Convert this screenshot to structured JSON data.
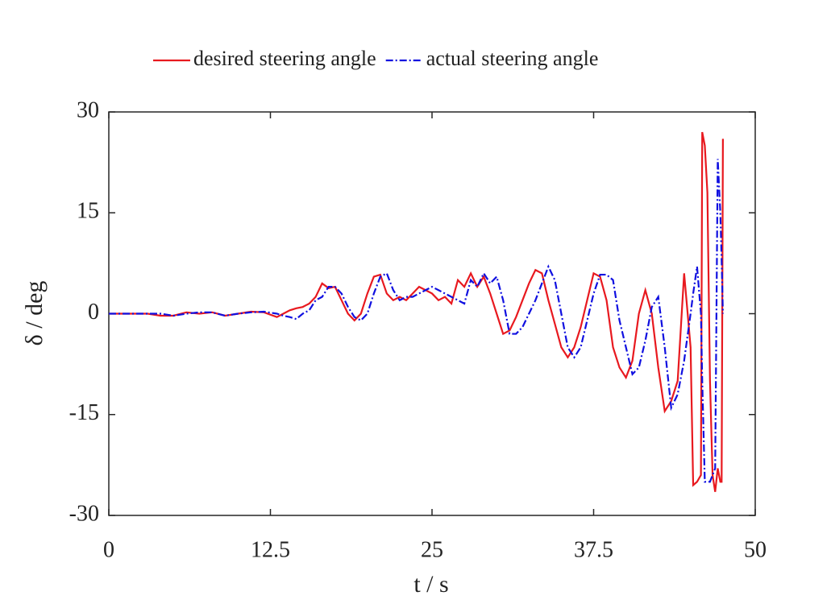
{
  "chart_data": {
    "type": "line",
    "xlabel": "t / s",
    "ylabel": "δ / deg",
    "xlim": [
      0,
      50
    ],
    "xticks": [
      0,
      12.5,
      25,
      37.5,
      50
    ],
    "ylim": [
      -30,
      30
    ],
    "yticks": [
      -30,
      -15,
      0,
      15,
      30
    ],
    "legend": "top",
    "x": [
      0,
      1,
      2,
      3,
      4,
      5,
      6,
      7,
      8,
      9,
      10,
      11,
      12,
      13,
      13.5,
      14,
      14.5,
      15,
      15.5,
      16,
      16.5,
      17,
      17.5,
      18,
      18.5,
      19,
      19.5,
      20,
      20.5,
      21,
      21.5,
      22,
      22.5,
      23,
      23.5,
      24,
      24.5,
      25,
      25.5,
      26,
      26.5,
      27,
      27.5,
      28,
      28.5,
      29,
      29.5,
      30,
      30.5,
      31,
      31.5,
      32,
      32.5,
      33,
      33.5,
      34,
      34.5,
      35,
      35.5,
      36,
      36.5,
      37,
      37.5,
      38,
      38.5,
      39,
      39.5,
      40,
      40.5,
      41,
      41.5,
      42,
      42.5,
      43,
      43.5,
      44,
      44.5,
      45,
      45.2,
      45.5,
      45.8,
      45.9,
      46.1,
      46.3,
      46.5,
      46.7,
      46.9,
      47.1,
      47.3,
      47.4,
      47.5
    ],
    "series": [
      {
        "name": "desired steering angle",
        "color": "#e8191f",
        "dash": "solid",
        "values": [
          0,
          0,
          0,
          0,
          -0.3,
          -0.3,
          0.2,
          0,
          0.2,
          -0.3,
          0,
          0.3,
          0.2,
          -0.5,
          0,
          0.5,
          0.8,
          1,
          1.5,
          2.5,
          4.5,
          3.8,
          4,
          2,
          0,
          -1,
          0,
          3,
          5.5,
          5.8,
          3,
          2,
          2.5,
          2,
          3,
          4,
          3.5,
          3,
          2,
          2.5,
          1.5,
          5,
          4,
          6,
          4,
          5.5,
          3,
          0,
          -3,
          -2.5,
          -0.5,
          2,
          4.5,
          6.5,
          6,
          2,
          -1.5,
          -5,
          -6.5,
          -5,
          -2,
          2,
          6,
          5.5,
          2,
          -5,
          -8,
          -9.5,
          -7,
          0,
          3.5,
          0,
          -8,
          -14.5,
          -13,
          -10,
          6,
          -5,
          -25.5,
          -25,
          -24,
          27,
          25,
          18,
          -10,
          -24,
          -26.5,
          -23,
          -25,
          -25,
          26
        ]
      },
      {
        "name": "actual steering angle",
        "color": "#1010e0",
        "dash": "dashdot",
        "values": [
          0,
          0,
          0,
          0,
          0,
          -0.3,
          0,
          0.2,
          0.2,
          -0.3,
          0,
          0.2,
          0.3,
          0,
          -0.3,
          -0.5,
          -0.8,
          0,
          0.5,
          2,
          2.5,
          4,
          4,
          3,
          1,
          -0.5,
          -1,
          0,
          3,
          5.5,
          6,
          3.5,
          2,
          2.5,
          2.5,
          3,
          3.5,
          4,
          3.5,
          3,
          2.5,
          2,
          1.5,
          5,
          4,
          6,
          4.5,
          5.5,
          2,
          -3,
          -3,
          -2,
          0,
          2,
          4.5,
          7,
          5,
          0,
          -5,
          -6.5,
          -5,
          -1,
          3,
          5.8,
          5.8,
          5,
          -1,
          -5,
          -9,
          -8,
          -4,
          1,
          2.5,
          -5,
          -14,
          -12,
          -7,
          0,
          3,
          7,
          0,
          -10,
          -25,
          -25,
          -25,
          -24,
          -23,
          23,
          15,
          8,
          0
        ]
      }
    ]
  }
}
